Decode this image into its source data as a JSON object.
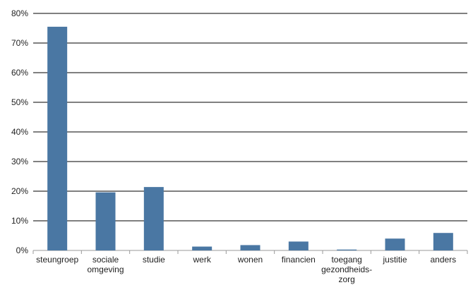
{
  "chart_data": {
    "type": "bar",
    "categories": [
      [
        "steungroep"
      ],
      [
        "sociale",
        "omgeving"
      ],
      [
        "studie"
      ],
      [
        "werk"
      ],
      [
        "wonen"
      ],
      [
        "financien"
      ],
      [
        "toegang",
        "gezondheids-",
        "zorg"
      ],
      [
        "justitie"
      ],
      [
        "anders"
      ]
    ],
    "values": [
      75.5,
      19.6,
      21.4,
      1.3,
      1.8,
      3.0,
      0.3,
      4.0,
      5.9
    ],
    "y_ticks": [
      "0%",
      "10%",
      "20%",
      "30%",
      "40%",
      "50%",
      "60%",
      "70%",
      "80%"
    ],
    "ylim": [
      0,
      80
    ],
    "title": "",
    "xlabel": "",
    "ylabel": "",
    "grid": true,
    "legend": "none",
    "colors": {
      "bar": "#4a77a3",
      "grid": "#000000",
      "axis": "#9a9a9a",
      "text": "#222222"
    }
  }
}
